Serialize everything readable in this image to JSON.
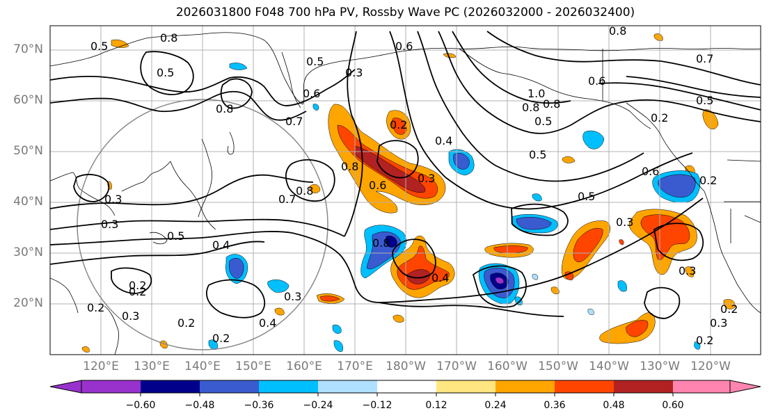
{
  "title": "2026031800 F048 700 hPa PV, Rossby Wave PC (2026032000 - 2026032400)",
  "map": {
    "lat_labels": [
      "70°N",
      "60°N",
      "50°N",
      "40°N",
      "30°N",
      "20°N"
    ],
    "lon_labels": [
      "120°E",
      "130°E",
      "140°E",
      "150°E",
      "160°E",
      "170°E",
      "180°W",
      "170°W",
      "160°W",
      "150°W",
      "140°W",
      "130°W",
      "120°W"
    ],
    "contour_labels": [
      "0.5",
      "0.8",
      "0.5",
      "0.7",
      "0.8",
      "0.5",
      "0.3",
      "0.6",
      "0.6",
      "0.8",
      "0.2",
      "0.4",
      "0.8",
      "0.6",
      "0.3",
      "0.7",
      "0.3",
      "0.3",
      "0.5",
      "0.4",
      "0.5",
      "0.6",
      "0.5",
      "0.3",
      "0.2",
      "0.5",
      "0.8",
      "1.0",
      "0.8",
      "0.6",
      "0.7",
      "0.8",
      "0.5",
      "0.4",
      "0.2",
      "0.2",
      "0.3",
      "0.4",
      "0.2",
      "0.2",
      "0.3",
      "0.2",
      "0.8",
      "0.2",
      "0.2",
      "0.3",
      "0.3",
      "0.2"
    ]
  },
  "colorbar": {
    "tick_labels": [
      "−0.60",
      "−0.48",
      "−0.36",
      "−0.24",
      "−0.12",
      "0.12",
      "0.24",
      "0.36",
      "0.48",
      "0.60"
    ],
    "colors": [
      "#9932CC",
      "#00008B",
      "#3A5BD0",
      "#00BFFF",
      "#B0E0FF",
      "#FFFFFF",
      "#FFE680",
      "#FFA500",
      "#FF4500",
      "#B22222",
      "#FF85B0"
    ]
  }
}
